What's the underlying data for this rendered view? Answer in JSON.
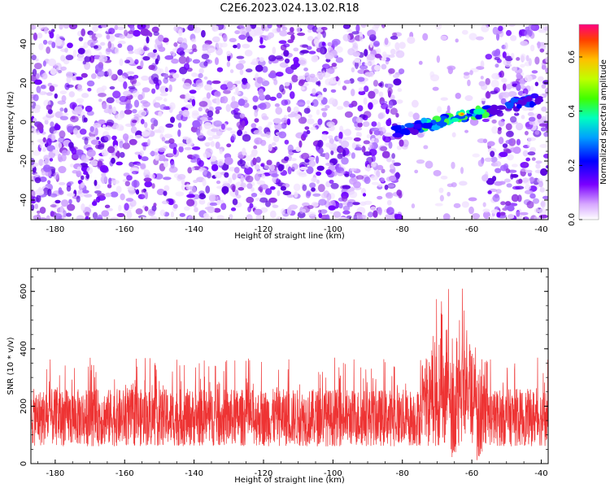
{
  "figure": {
    "title": "C2E6.2023.024.13.02.R18"
  },
  "chart_data": [
    {
      "type": "heatmap",
      "xlabel": "Height of straight line (km)",
      "ylabel": "Frequency (Hz)",
      "xlim": [
        -187,
        -38
      ],
      "ylim": [
        -50,
        50
      ],
      "xticks": [
        -180,
        -160,
        -140,
        -120,
        -100,
        -80,
        -60,
        -40
      ],
      "yticks": [
        -40,
        -20,
        0,
        20,
        40
      ],
      "colorbar": {
        "label": "Normalized spectral amplitude",
        "range": [
          0,
          0.72
        ],
        "ticks": [
          "0.0",
          "0.2",
          "0.4",
          "0.6"
        ],
        "tick_values": [
          0,
          0.2,
          0.4,
          0.6
        ]
      },
      "feature": {
        "description_values": "bright narrow band rising from about -5 Hz near -82 km to about 12 Hz near -40 km, peak amplitude ~0.6 near -63 km",
        "start": [
          -82,
          -5
        ],
        "end": [
          -40,
          12
        ]
      },
      "grid": false
    },
    {
      "type": "line",
      "xlabel": "Height of straight line (km)",
      "ylabel": "SNR (10 * v/v)",
      "xlim": [
        -187,
        -38
      ],
      "ylim": [
        0,
        680
      ],
      "xticks": [
        -180,
        -160,
        -140,
        -120,
        -100,
        -80,
        -60,
        -40
      ],
      "yticks": [
        0,
        200,
        400,
        600
      ],
      "series_color": "#ee3333",
      "baseline_band": [
        60,
        260
      ],
      "peak_regions": [
        {
          "x": -69,
          "max": 670
        },
        {
          "x": -62,
          "max": 680
        }
      ],
      "grid": false
    }
  ]
}
